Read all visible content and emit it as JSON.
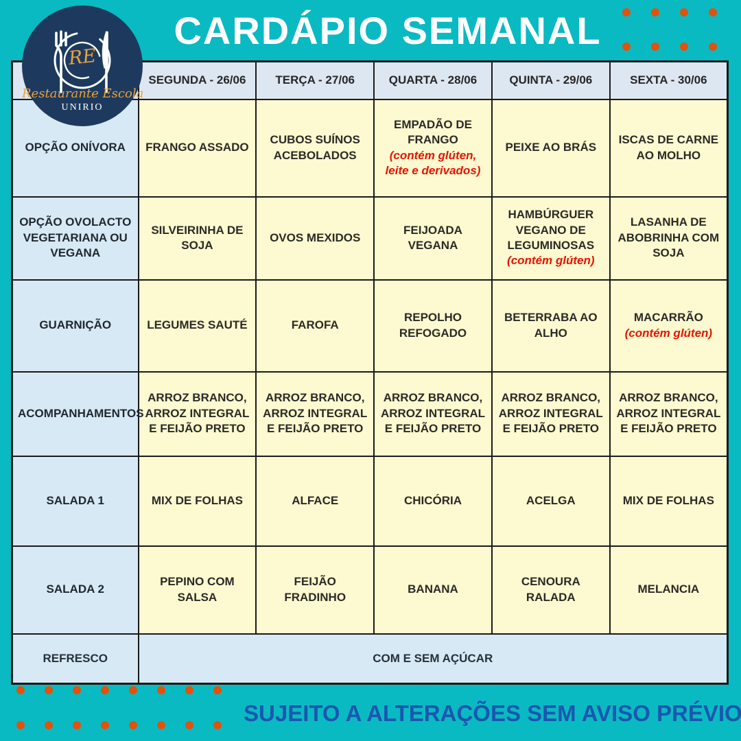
{
  "title": "CARDÁPIO SEMANAL",
  "logo": {
    "monogram": "RE",
    "name": "Restaurante Escola",
    "university": "UNIRIO"
  },
  "table": {
    "columns": [
      "",
      "SEGUNDA - 26/06",
      "TERÇA - 27/06",
      "QUARTA - 28/06",
      "QUINTA - 29/06",
      "SEXTA - 30/06"
    ],
    "rows": [
      {
        "label": "OPÇÃO ONÍVORA",
        "cells": [
          {
            "text": "FRANGO ASSADO"
          },
          {
            "text": "CUBOS SUÍNOS ACEBOLADOS"
          },
          {
            "text": "EMPADÃO DE FRANGO",
            "note": "(contém glúten, leite e derivados)"
          },
          {
            "text": "PEIXE AO BRÁS"
          },
          {
            "text": "ISCAS DE CARNE AO MOLHO"
          }
        ]
      },
      {
        "label": "OPÇÃO OVOLACTO VEGETARIANA OU VEGANA",
        "cells": [
          {
            "text": "SILVEIRINHA DE SOJA"
          },
          {
            "text": "OVOS MEXIDOS"
          },
          {
            "text": "FEIJOADA VEGANA"
          },
          {
            "text": "HAMBÚRGUER VEGANO DE LEGUMINOSAS",
            "note": "(contém glúten)"
          },
          {
            "text": "LASANHA DE ABOBRINHA COM SOJA"
          }
        ]
      },
      {
        "label": "GUARNIÇÃO",
        "cells": [
          {
            "text": "LEGUMES SAUTÉ"
          },
          {
            "text": "FAROFA"
          },
          {
            "text": "REPOLHO REFOGADO"
          },
          {
            "text": "BETERRABA AO ALHO"
          },
          {
            "text": "MACARRÃO",
            "note": "(contém glúten)"
          }
        ]
      },
      {
        "label": "ACOMPANHAMENTOS",
        "cells": [
          {
            "text": "ARROZ BRANCO, ARROZ INTEGRAL E FEIJÃO PRETO"
          },
          {
            "text": "ARROZ BRANCO, ARROZ INTEGRAL E FEIJÃO PRETO"
          },
          {
            "text": "ARROZ BRANCO, ARROZ INTEGRAL E FEIJÃO PRETO"
          },
          {
            "text": "ARROZ BRANCO, ARROZ INTEGRAL E FEIJÃO PRETO"
          },
          {
            "text": "ARROZ BRANCO, ARROZ INTEGRAL E FEIJÃO PRETO"
          }
        ]
      },
      {
        "label": "SALADA 1",
        "cells": [
          {
            "text": "MIX DE FOLHAS"
          },
          {
            "text": "ALFACE"
          },
          {
            "text": "CHICÓRIA"
          },
          {
            "text": "ACELGA"
          },
          {
            "text": "MIX DE FOLHAS"
          }
        ]
      },
      {
        "label": "SALADA 2",
        "cells": [
          {
            "text": "PEPINO COM SALSA"
          },
          {
            "text": "FEIJÃO FRADINHO"
          },
          {
            "text": "BANANA"
          },
          {
            "text": "CENOURA RALADA"
          },
          {
            "text": "MELANCIA"
          }
        ]
      }
    ],
    "footer_row": {
      "label": "REFRESCO",
      "value": "COM E SEM AÇÚCAR"
    }
  },
  "footer_note": "SUJEITO A ALTERAÇÕES SEM AVISO PRÉVIO!",
  "decorations": {
    "top_right_dots": {
      "rows": 2,
      "cols": 4
    },
    "bottom_left_dots": {
      "rows": 2,
      "cols": 8
    }
  },
  "colors": {
    "background": "#09bac2",
    "accent_orange": "#e2520b",
    "logo_navy": "#1d3a5e",
    "header_cell": "#dde7f2",
    "label_cell": "#d7e9f4",
    "data_cell": "#fdf9d0",
    "allergen_red": "#e51400",
    "footer_text_blue": "#1a56b0"
  }
}
